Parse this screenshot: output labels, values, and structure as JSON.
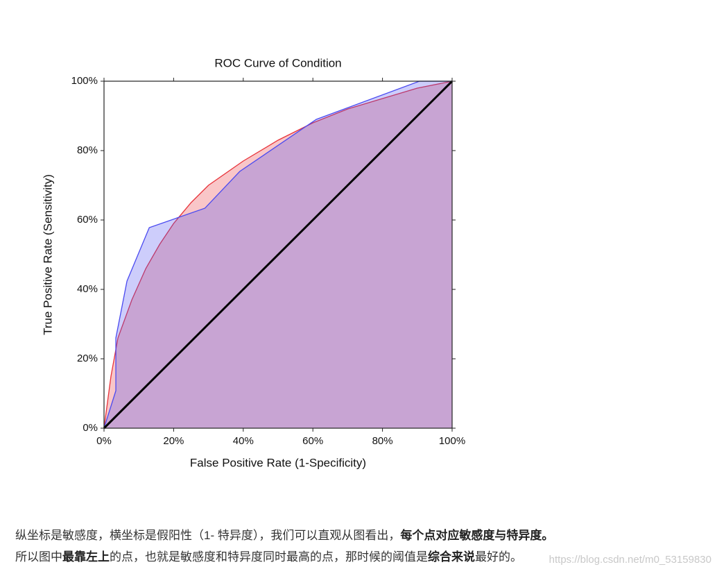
{
  "chart_data": {
    "type": "line",
    "title": "ROC Curve of Condition",
    "x_label": "False Positive Rate (1-Specificity)",
    "y_label": "True Positive Rate (Sensitivity)",
    "xlim": [
      0,
      100
    ],
    "ylim": [
      0,
      100
    ],
    "xticks": [
      {
        "value": 0,
        "label": "0%"
      },
      {
        "value": 20,
        "label": "20%"
      },
      {
        "value": 40,
        "label": "40%"
      },
      {
        "value": 60,
        "label": "60%"
      },
      {
        "value": 80,
        "label": "80%"
      },
      {
        "value": 100,
        "label": "100%"
      }
    ],
    "yticks": [
      {
        "value": 0,
        "label": "0%"
      },
      {
        "value": 20,
        "label": "20%"
      },
      {
        "value": 40,
        "label": "40%"
      },
      {
        "value": 60,
        "label": "60%"
      },
      {
        "value": 80,
        "label": "80%"
      },
      {
        "value": 100,
        "label": "100%"
      }
    ],
    "series": [
      {
        "color": "#e8333a",
        "fill": true,
        "x": [
          0,
          2,
          4,
          8,
          12,
          16,
          20,
          25,
          30,
          40,
          50,
          60,
          70,
          80,
          90,
          100
        ],
        "values": [
          0,
          15,
          26,
          37,
          46,
          53,
          59,
          65,
          70,
          77,
          83,
          88,
          92,
          95,
          98,
          100
        ]
      },
      {
        "color": "#4a4af0",
        "fill": true,
        "x": [
          0,
          3.4,
          3.4,
          6.6,
          13,
          29,
          39,
          61,
          90.6,
          100
        ],
        "values": [
          0,
          10.8,
          26,
          42.4,
          57.8,
          63.4,
          74,
          89,
          100,
          100
        ]
      },
      {
        "color": "#000000",
        "fill": false,
        "x": [
          0,
          100
        ],
        "values": [
          0,
          100
        ]
      }
    ]
  },
  "paragraph": {
    "lines": [
      [
        {
          "text": "纵坐标是敏感度，横坐标是假阳性（1- 特异度），我们可以直观从图看出，",
          "bold": false
        },
        {
          "text": "每个点对应敏感度与特异度。",
          "bold": true
        }
      ],
      [
        {
          "text": "所以图中",
          "bold": false
        },
        {
          "text": "最靠左上",
          "bold": true
        },
        {
          "text": "的点，也就是敏感度和特异度同时最高的点，那时候的阈值是",
          "bold": false
        },
        {
          "text": "综合来说",
          "bold": true
        },
        {
          "text": "最好的。",
          "bold": false
        }
      ]
    ]
  },
  "watermark": "https://blog.csdn.net/m0_53159830"
}
